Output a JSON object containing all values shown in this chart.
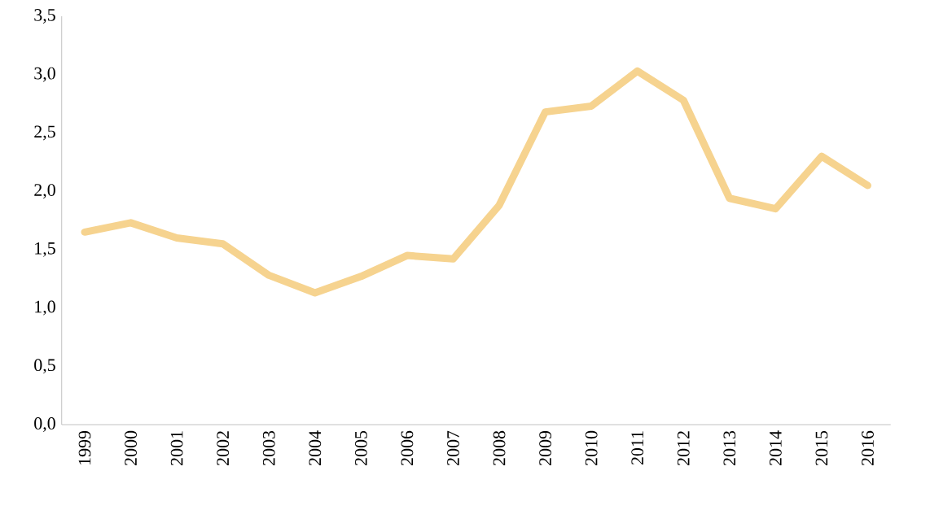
{
  "chart_data": {
    "type": "line",
    "categories": [
      "1999",
      "2000",
      "2001",
      "2002",
      "2003",
      "2004",
      "2005",
      "2006",
      "2007",
      "2008",
      "2009",
      "2010",
      "2011",
      "2012",
      "2013",
      "2014",
      "2015",
      "2016"
    ],
    "values": [
      1.65,
      1.73,
      1.6,
      1.55,
      1.28,
      1.13,
      1.27,
      1.45,
      1.42,
      1.88,
      2.68,
      2.73,
      3.03,
      2.78,
      1.94,
      1.85,
      2.3,
      2.05
    ],
    "color": "#f6d38f",
    "ylim": [
      0,
      3.5
    ],
    "yticks": [
      {
        "value": 0,
        "label": "0,0"
      },
      {
        "value": 0.5,
        "label": "0,5"
      },
      {
        "value": 1,
        "label": "1,0"
      },
      {
        "value": 1.5,
        "label": "1,5"
      },
      {
        "value": 2,
        "label": "2,0"
      },
      {
        "value": 2.5,
        "label": "2,5"
      },
      {
        "value": 3,
        "label": "3,0"
      },
      {
        "value": 3.5,
        "label": "3,5"
      }
    ],
    "grid": false,
    "marker": "none",
    "line_style": "solid"
  }
}
